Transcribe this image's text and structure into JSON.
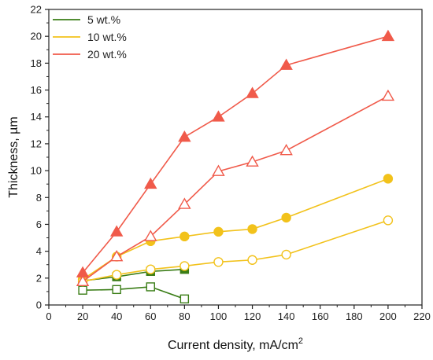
{
  "chart_data": {
    "type": "line",
    "xlabel": "Current density, mA/cm",
    "xlabel_superscript": "2",
    "ylabel": "Thickness, µm",
    "xlim": [
      0,
      220
    ],
    "ylim": [
      0,
      22
    ],
    "xticks": [
      0,
      20,
      40,
      60,
      80,
      100,
      120,
      140,
      160,
      180,
      200,
      220
    ],
    "yticks": [
      0,
      2,
      4,
      6,
      8,
      10,
      12,
      14,
      16,
      18,
      20,
      22
    ],
    "grid": false,
    "legend": {
      "placement": "top-left",
      "entries": [
        {
          "label": "5 wt.%",
          "color": "#3a7d16"
        },
        {
          "label": "10 wt.%",
          "color": "#f2c21b"
        },
        {
          "label": "20 wt.%",
          "color": "#f05a4a"
        }
      ]
    },
    "series": [
      {
        "group": 0,
        "color": "#3a7d16",
        "marker": "square",
        "filled": true,
        "x": [
          20,
          40,
          60,
          80
        ],
        "y": [
          1.8,
          2.1,
          2.5,
          2.65
        ]
      },
      {
        "group": 0,
        "color": "#3a7d16",
        "marker": "square",
        "filled": false,
        "x": [
          20,
          40,
          60,
          80
        ],
        "y": [
          1.1,
          1.15,
          1.35,
          0.45
        ]
      },
      {
        "group": 1,
        "color": "#f2c21b",
        "marker": "circle",
        "filled": true,
        "x": [
          20,
          40,
          60,
          80,
          100,
          120,
          140,
          200
        ],
        "y": [
          1.9,
          3.6,
          4.75,
          5.1,
          5.45,
          5.65,
          6.5,
          9.4
        ]
      },
      {
        "group": 1,
        "color": "#f2c21b",
        "marker": "circle",
        "filled": false,
        "x": [
          20,
          40,
          60,
          80,
          100,
          120,
          140,
          200
        ],
        "y": [
          1.75,
          2.25,
          2.65,
          2.9,
          3.2,
          3.35,
          3.75,
          6.3
        ]
      },
      {
        "group": 2,
        "color": "#f05a4a",
        "marker": "triangle",
        "filled": true,
        "x": [
          20,
          40,
          60,
          80,
          100,
          140,
          120,
          200
        ],
        "y": [
          2.4,
          5.45,
          9.0,
          12.5,
          14.0,
          17.85,
          15.75,
          20.0
        ]
      },
      {
        "group": 2,
        "color": "#f05a4a",
        "marker": "triangle",
        "filled": false,
        "x": [
          20,
          40,
          60,
          80,
          100,
          120,
          140,
          200
        ],
        "y": [
          1.75,
          3.6,
          5.1,
          7.5,
          9.95,
          10.65,
          11.5,
          15.55
        ]
      }
    ]
  }
}
